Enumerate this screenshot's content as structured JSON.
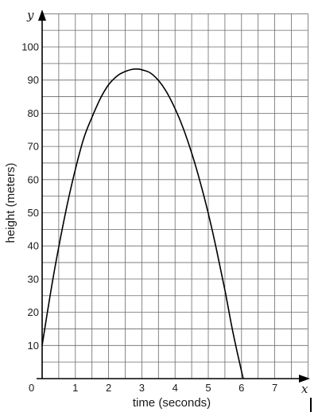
{
  "chart_data": {
    "type": "line",
    "title": "",
    "xlabel": "time (seconds)",
    "ylabel": "height (meters)",
    "x_axis_var": "x",
    "y_axis_var": "y",
    "xlim": [
      0,
      8
    ],
    "ylim": [
      0,
      110
    ],
    "x_ticks": [
      1,
      2,
      3,
      4,
      5,
      6,
      7
    ],
    "y_ticks": [
      10,
      20,
      30,
      40,
      50,
      60,
      70,
      80,
      90,
      100
    ],
    "origin_label": "0",
    "grid": true,
    "x_minor_step": 0.5,
    "y_minor_step": 5,
    "series": [
      {
        "x": [
          0,
          0.25,
          0.5,
          0.75,
          1,
          1.25,
          1.5,
          1.75,
          2,
          2.25,
          2.5,
          2.75,
          2.9,
          3,
          3.25,
          3.5,
          3.75,
          4,
          4.25,
          4.5,
          4.75,
          5,
          5.25,
          5.5,
          5.75,
          6.05
        ],
        "values": [
          10,
          25.7,
          39.7,
          52.2,
          63.1,
          72.4,
          78.8,
          84.4,
          88.6,
          91.2,
          92.6,
          93.3,
          93.3,
          93.1,
          92.2,
          89.9,
          86.3,
          81.4,
          75.4,
          68.0,
          59.5,
          49.8,
          38.8,
          26.7,
          13.5,
          0
        ]
      }
    ]
  },
  "colors": {
    "grid": "#6a6a6a",
    "axis": "#000000",
    "curve": "#000000",
    "text": "#1a1a1a"
  }
}
